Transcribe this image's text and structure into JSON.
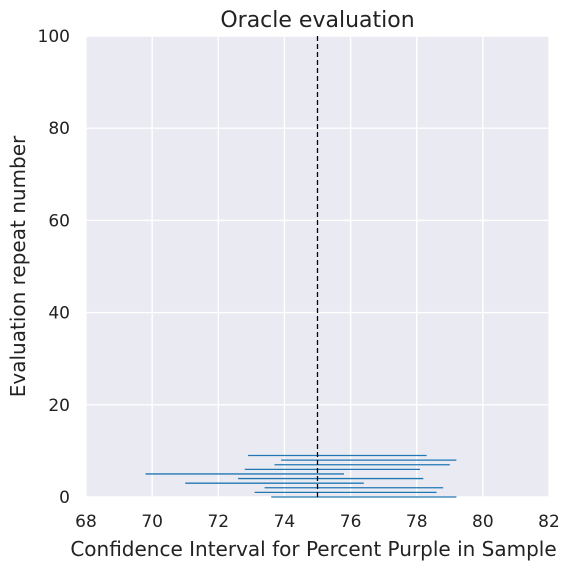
{
  "chart_data": {
    "type": "interval",
    "title": "Oracle evaluation",
    "xlabel": "Confidence Interval for Percent Purple in Sample",
    "ylabel": "Evaluation repeat number",
    "xlim": [
      68,
      82
    ],
    "ylim": [
      0,
      100
    ],
    "xticks": [
      "68",
      "70",
      "72",
      "74",
      "76",
      "78",
      "80",
      "82"
    ],
    "yticks": [
      "0",
      "20",
      "40",
      "60",
      "80",
      "100"
    ],
    "grid": true,
    "reference_line": {
      "x": 75,
      "style": "dashed",
      "color": "#000000"
    },
    "series": [
      {
        "color": "#1f77b4",
        "intervals": [
          {
            "y": 0,
            "low": 73.6,
            "high": 79.2
          },
          {
            "y": 1,
            "low": 73.1,
            "high": 78.6
          },
          {
            "y": 2,
            "low": 73.4,
            "high": 78.8
          },
          {
            "y": 3,
            "low": 71.0,
            "high": 76.4
          },
          {
            "y": 4,
            "low": 72.6,
            "high": 78.2
          },
          {
            "y": 5,
            "low": 69.8,
            "high": 75.8
          },
          {
            "y": 6,
            "low": 72.8,
            "high": 78.1
          },
          {
            "y": 7,
            "low": 73.7,
            "high": 79.0
          },
          {
            "y": 8,
            "low": 73.9,
            "high": 79.2
          },
          {
            "y": 9,
            "low": 72.9,
            "high": 78.3
          }
        ]
      }
    ]
  }
}
